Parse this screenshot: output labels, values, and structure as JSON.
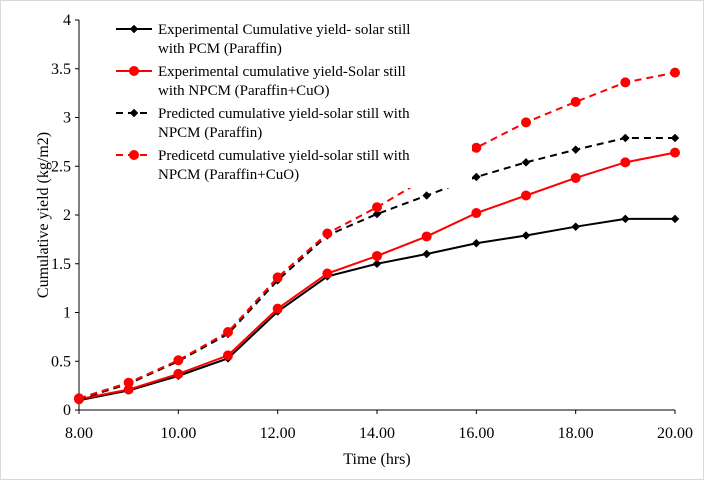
{
  "chart_data": {
    "type": "line",
    "title": "",
    "xlabel": "Time (hrs)",
    "ylabel": "Cumulative yield (kg/m2)",
    "xlim": [
      8,
      20
    ],
    "ylim": [
      0,
      4
    ],
    "x_ticks": [
      "8.00",
      "10.00",
      "12.00",
      "14.00",
      "16.00",
      "18.00",
      "20.00"
    ],
    "y_ticks": [
      "0",
      "0.5",
      "1",
      "1.5",
      "2",
      "2.5",
      "3",
      "3.5",
      "4"
    ],
    "grid": false,
    "legend_position": "top-left",
    "series": [
      {
        "name": "Experimental Cumulative yield- solar still with PCM (Paraffin)",
        "color": "#000000",
        "dash": "solid",
        "marker": "diamond",
        "x": [
          8,
          9,
          10,
          11,
          12,
          13,
          14,
          15,
          16,
          17,
          18,
          19,
          20
        ],
        "values": [
          0.1,
          0.2,
          0.35,
          0.53,
          1.01,
          1.37,
          1.5,
          1.6,
          1.71,
          1.79,
          1.88,
          1.96,
          1.96
        ]
      },
      {
        "name": "Experimental cumulative yield-Solar still with NPCM (Paraffin+CuO)",
        "color": "#ff0000",
        "dash": "solid",
        "marker": "circle",
        "x": [
          8,
          9,
          10,
          11,
          12,
          13,
          14,
          15,
          16,
          17,
          18,
          19,
          20
        ],
        "values": [
          0.11,
          0.21,
          0.37,
          0.56,
          1.04,
          1.4,
          1.58,
          1.78,
          2.02,
          2.2,
          2.38,
          2.54,
          2.64
        ]
      },
      {
        "name": "Predicted cumulative yield-solar still with NPCM (Paraffin)",
        "color": "#000000",
        "dash": "dashed",
        "marker": "diamond",
        "x": [
          8,
          9,
          10,
          11,
          12,
          13,
          14,
          15,
          16,
          17,
          18,
          19,
          20
        ],
        "values": [
          0.11,
          0.27,
          0.5,
          0.78,
          1.33,
          1.79,
          2.01,
          2.2,
          2.39,
          2.54,
          2.67,
          2.79,
          2.79
        ]
      },
      {
        "name": "Predicetd cumulative yield-solar still with NPCM (Paraffin+CuO)",
        "color": "#ff0000",
        "dash": "dashed",
        "marker": "circle",
        "x": [
          8,
          9,
          10,
          11,
          12,
          13,
          14,
          15,
          16,
          17,
          18,
          19,
          20
        ],
        "values": [
          0.12,
          0.28,
          0.51,
          0.8,
          1.36,
          1.81,
          2.08,
          2.38,
          2.69,
          2.95,
          3.16,
          3.36,
          3.46
        ]
      }
    ],
    "legend": [
      {
        "line1": "Experimental Cumulative yield- solar still",
        "line2": "with PCM (Paraffin)"
      },
      {
        "line1": "Experimental cumulative yield-Solar still",
        "line2": "with NPCM (Paraffin+CuO)"
      },
      {
        "line1": "Predicted cumulative yield-solar still with",
        "line2": "NPCM (Paraffin)"
      },
      {
        "line1": "Predicetd cumulative yield-solar still with",
        "line2": "NPCM (Paraffin+CuO)"
      }
    ]
  }
}
